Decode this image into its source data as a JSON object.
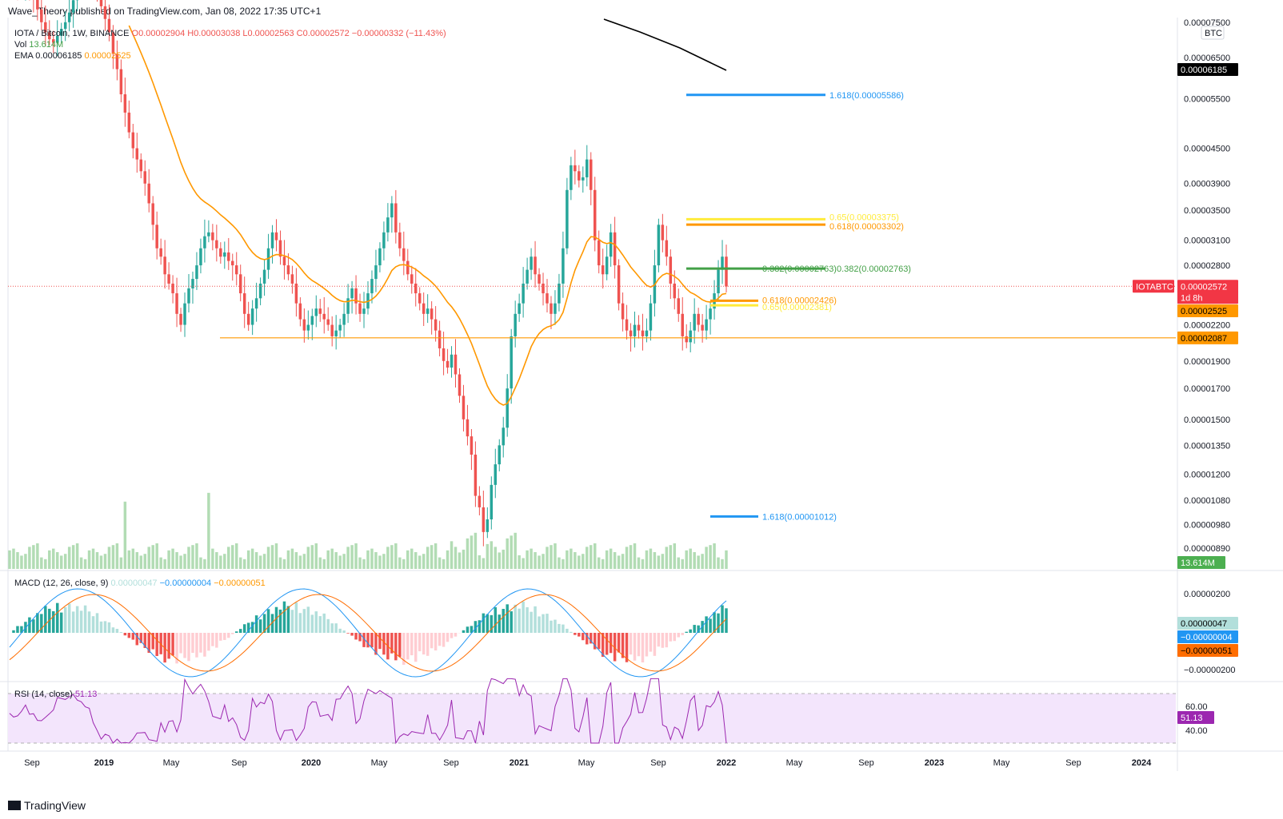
{
  "header": {
    "publisher": "Wave_Theory published on TradingView.com, Jan 08, 2022 17:35 UTC+1"
  },
  "legend": {
    "pair": "IOTA / Bitcoin, 1W, BINANCE",
    "o": "O0.00002904",
    "h": "H0.00003038",
    "l": "L0.00002563",
    "c": "C0.00002572",
    "chg": "−0.00000332 (−11.43%)",
    "vol_label": "Vol",
    "vol_value": "13.614M",
    "ema_label": "EMA",
    "ema_value1": "0.00006185",
    "ema_value2": "0.00002525"
  },
  "macd": {
    "label": "MACD (12, 26, close, 9)",
    "hist": "0.00000047",
    "macd": "−0.00000004",
    "signal": "−0.00000051"
  },
  "rsi": {
    "label": "RSI (14, close)",
    "value": "51.13"
  },
  "footer": {
    "brand": "TradingView"
  },
  "colors": {
    "up": "#26a69a",
    "down": "#ef5350",
    "ema": "#ff9800",
    "ema200": "#000000",
    "fib_blue": "#2196f3",
    "fib_green": "#43a047",
    "fib_yellow": "#ffeb3b",
    "fib_orange": "#ff9800",
    "support": "#ff9800",
    "rsi_bg": "#f3e5fc",
    "rsi_line": "#9c27b0"
  },
  "chart_data": {
    "type": "candlestick",
    "symbol": "IOTABTC",
    "timeframe": "1W",
    "scale": "log",
    "y_ticks": [
      "0.00007500",
      "0.00006500",
      "0.00005500",
      "0.00004500",
      "0.00003900",
      "0.00003500",
      "0.00003100",
      "0.00002800",
      "0.00002200",
      "0.00001900",
      "0.00001700",
      "0.00001500",
      "0.00001350",
      "0.00001200",
      "0.00001080",
      "0.00000980",
      "0.00000890"
    ],
    "price_axis_labels": [
      {
        "text": "BTC",
        "kind": "currency"
      },
      {
        "text": "0.00006185",
        "kind": "ema200"
      },
      {
        "text": "IOTABTC",
        "kind": "symbol"
      },
      {
        "text": "0.00002572",
        "kind": "last"
      },
      {
        "text": "1d 8h",
        "kind": "countdown"
      },
      {
        "text": "0.00002525",
        "kind": "ema"
      },
      {
        "text": "0.00002087",
        "kind": "support"
      },
      {
        "text": "13.614M",
        "kind": "volume"
      }
    ],
    "x_ticks": [
      "Sep",
      "2019",
      "May",
      "Sep",
      "2020",
      "May",
      "Sep",
      "2021",
      "May",
      "Sep",
      "2022",
      "May",
      "Sep",
      "2023",
      "May",
      "Sep",
      "2024"
    ],
    "fib_levels": [
      {
        "label": "1.618(0.00005586)",
        "value": 5.586e-05,
        "color": "blue"
      },
      {
        "label": "0.65(0.00003375)",
        "value": 3.375e-05,
        "color": "yellow"
      },
      {
        "label": "0.618(0.00003302)",
        "value": 3.302e-05,
        "color": "orange"
      },
      {
        "label": "0.382(0.00002763)",
        "value": 2.763e-05,
        "color": "green"
      },
      {
        "label": "0.382(0.00002763)",
        "value": 2.763e-05,
        "color": "green"
      },
      {
        "label": "0.618(0.00002426)",
        "value": 2.426e-05,
        "color": "orange"
      },
      {
        "label": "0.65(0.00002381)",
        "value": 2.381e-05,
        "color": "yellow"
      },
      {
        "label": "1.618(0.00001012)",
        "value": 1.012e-05,
        "color": "blue"
      }
    ],
    "support_level": 2.087e-05,
    "close_series_approx": [
      8.95e-05,
      8.8e-05,
      8.65e-05,
      8.6e-05,
      8.7e-05,
      8.5e-05,
      8.3e-05,
      7.9e-05,
      7.5e-05,
      7.2e-05,
      7e-05,
      6.9e-05,
      7.1e-05,
      7.3e-05,
      7.5e-05,
      7.8e-05,
      8.2e-05,
      8.5e-05,
      8.8e-05,
      9e-05,
      9.2e-05,
      9e-05,
      8.6e-05,
      8e-05,
      7.6e-05,
      7.2e-05,
      6.6e-05,
      6.2e-05,
      5.6e-05,
      5.2e-05,
      4.8e-05,
      4.5e-05,
      4.3e-05,
      4.1e-05,
      3.9e-05,
      3.6e-05,
      3.3e-05,
      3e-05,
      2.9e-05,
      2.7e-05,
      2.6e-05,
      2.5e-05,
      2.3e-05,
      2.2e-05,
      2.4e-05,
      2.55e-05,
      2.65e-05,
      2.8e-05,
      3e-05,
      3.15e-05,
      3.2e-05,
      3.1e-05,
      3e-05,
      2.9e-05,
      2.95e-05,
      2.85e-05,
      2.8e-05,
      2.7e-05,
      2.5e-05,
      2.3e-05,
      2.2e-05,
      2.35e-05,
      2.45e-05,
      2.6e-05,
      2.75e-05,
      3e-05,
      3.2e-05,
      3.1e-05,
      2.9e-05,
      2.8e-05,
      2.7e-05,
      2.6e-05,
      2.4e-05,
      2.25e-05,
      2.15e-05,
      2.2e-05,
      2.28e-05,
      2.35e-05,
      2.3e-05,
      2.25e-05,
      2.2e-05,
      2.1e-05,
      2.15e-05,
      2.2e-05,
      2.3e-05,
      2.45e-05,
      2.55e-05,
      2.4e-05,
      2.3e-05,
      2.35e-05,
      2.5e-05,
      2.65e-05,
      2.8e-05,
      3e-05,
      3.2e-05,
      3.4e-05,
      3.6e-05,
      3.2e-05,
      3e-05,
      2.85e-05,
      2.7e-05,
      2.6e-05,
      2.5e-05,
      2.4e-05,
      2.3e-05,
      2.35e-05,
      2.25e-05,
      2.15e-05,
      2e-05,
      1.9e-05,
      1.85e-05,
      1.95e-05,
      1.8e-05,
      1.65e-05,
      1.5e-05,
      1.4e-05,
      1.3e-05,
      1.1e-05,
      1.05e-05,
      9.5e-06,
      1e-05,
      1.15e-05,
      1.25e-05,
      1.35e-05,
      1.45e-05,
      1.7e-05,
      2.1e-05,
      2.3e-05,
      2.4e-05,
      2.6e-05,
      2.75e-05,
      2.9e-05,
      2.7e-05,
      2.6e-05,
      2.5e-05,
      2.4e-05,
      2.3e-05,
      2.4e-05,
      2.6e-05,
      3e-05,
      3.8e-05,
      4.2e-05,
      4.1e-05,
      3.95e-05,
      4e-05,
      4.3e-05,
      3.8e-05,
      3.1e-05,
      2.8e-05,
      2.7e-05,
      2.9e-05,
      3.2e-05,
      2.8e-05,
      2.4e-05,
      2.25e-05,
      2.15e-05,
      2.1e-05,
      2.2e-05,
      2.15e-05,
      2.1e-05,
      2.15e-05,
      2.4e-05,
      2.8e-05,
      3.3e-05,
      3.1e-05,
      2.9e-05,
      2.6e-05,
      2.45e-05,
      2.3e-05,
      2.1e-05,
      2.05e-05,
      2.15e-05,
      2.3e-05,
      2.2e-05,
      2.15e-05,
      2.25e-05,
      2.35e-05,
      2.5e-05,
      2.75e-05,
      2.9e-05,
      2.57e-05
    ]
  }
}
